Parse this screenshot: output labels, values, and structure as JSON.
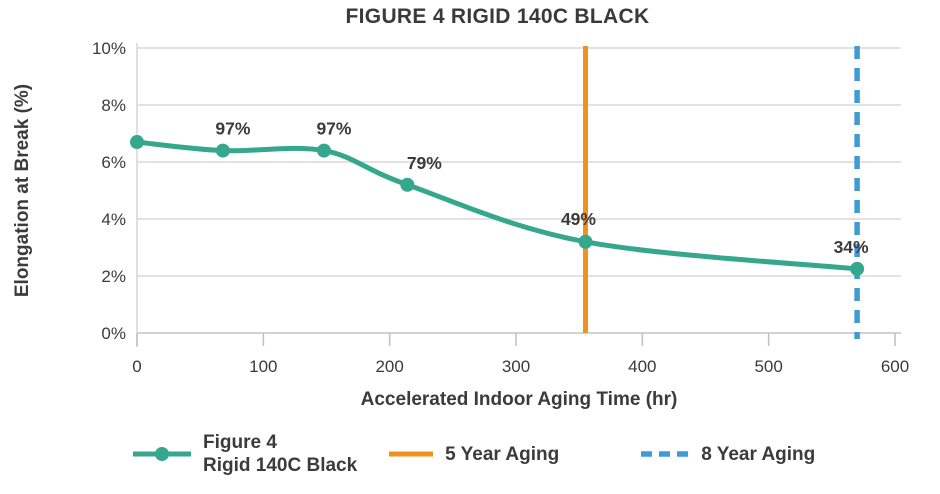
{
  "chart_data": {
    "type": "line",
    "title": "FIGURE 4 RIGID 140C BLACK",
    "xlabel": "Accelerated Indoor Aging Time (hr)",
    "ylabel": "Elongation at Break (%)",
    "xlim": [
      0,
      600
    ],
    "ylim": [
      0,
      10
    ],
    "xticks": {
      "values": [
        0,
        100,
        200,
        300,
        400,
        500,
        600
      ],
      "labels": [
        "0",
        "100",
        "200",
        "300",
        "400",
        "500",
        "600"
      ]
    },
    "yticks": {
      "values": [
        0,
        2,
        4,
        6,
        8,
        10
      ],
      "labels": [
        "0%",
        "2%",
        "4%",
        "6%",
        "8%",
        "10%"
      ]
    },
    "grid": "horizontal-only",
    "legend_position": "bottom",
    "colors": {
      "series": "#35A78C",
      "five_year_line": "#F0921F",
      "eight_year_line": "#3E9BD6",
      "gridline": "#D9D9D9",
      "axis": "#C3C3C3",
      "text": "#3b3b3b"
    },
    "series": [
      {
        "name": "Figure 4 Rigid 140C Black",
        "color": "#35A78C",
        "smooth": true,
        "points": [
          {
            "x": 0,
            "y": 6.7,
            "label": "",
            "dx": 0,
            "dy": 0
          },
          {
            "x": 68,
            "y": 6.4,
            "label": "97%",
            "dx": 10,
            "dy": -16
          },
          {
            "x": 148,
            "y": 6.4,
            "label": "97%",
            "dx": 10,
            "dy": -16
          },
          {
            "x": 214,
            "y": 5.2,
            "label": "79%",
            "dx": 17,
            "dy": -16
          },
          {
            "x": 355,
            "y": 3.2,
            "label": "49%",
            "dx": -7,
            "dy": -17
          },
          {
            "x": 570,
            "y": 2.25,
            "label": "34%",
            "dx": -6,
            "dy": -16
          }
        ]
      }
    ],
    "vlines": [
      {
        "x": 355,
        "name": "five-year-aging-line",
        "color": "#F0921F",
        "style": "solid",
        "width": 5
      },
      {
        "x": 570,
        "name": "eight-year-aging-line",
        "color": "#3E9BD6",
        "style": "dashed",
        "width": 5.5
      }
    ],
    "legend": {
      "items": [
        {
          "swatch": "line-with-marker",
          "color": "#35A78C",
          "label_line1": "Figure 4",
          "label_line2": "Rigid 140C Black"
        },
        {
          "swatch": "solid-line",
          "color": "#F0921F",
          "label_line1": "5 Year Aging",
          "label_line2": ""
        },
        {
          "swatch": "dashed-line",
          "color": "#3E9BD6",
          "label_line1": "8 Year Aging",
          "label_line2": ""
        }
      ]
    }
  }
}
